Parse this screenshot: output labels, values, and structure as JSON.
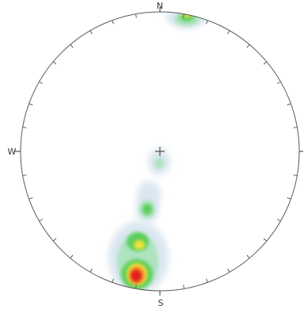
{
  "stereonet": {
    "directions": {
      "north": "N",
      "south": "S",
      "west": "W",
      "east": ""
    },
    "center_marker": "crosshair",
    "tick_interval_deg": 10,
    "density_colors": {
      "very_low": "#dbe7f0",
      "low": "#aee3c0",
      "medium": "#5ccf5c",
      "high": "#f3e23a",
      "very_high": "#f39a2b",
      "max": "#e21b1b"
    }
  }
}
